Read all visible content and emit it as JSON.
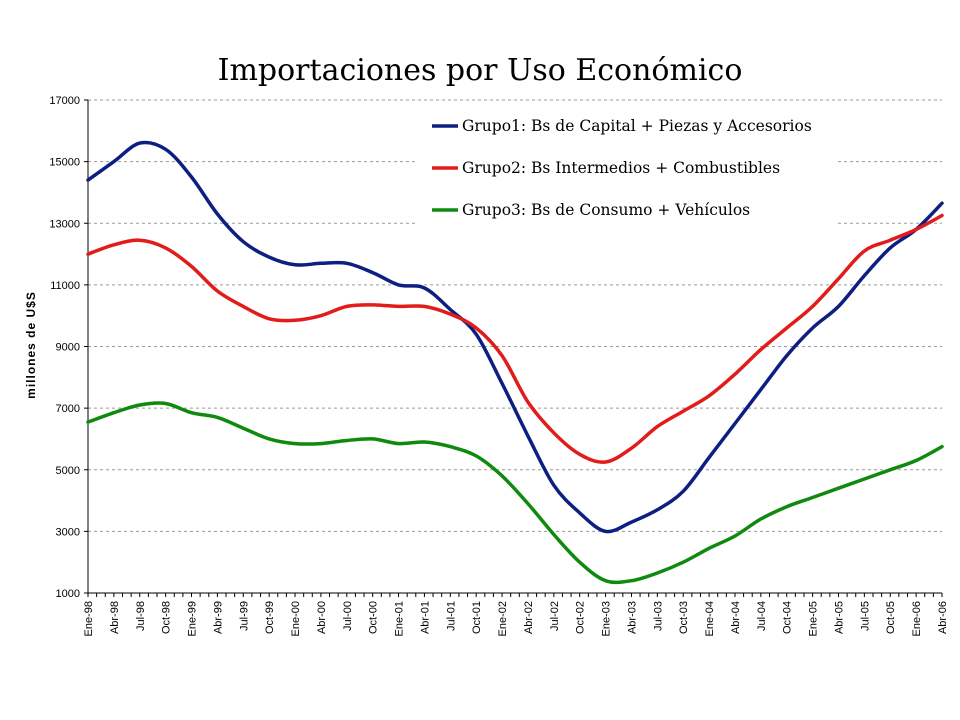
{
  "chart_data": {
    "type": "line",
    "title": "Importaciones por Uso Económico",
    "ylabel": "millones de U$S",
    "xlabel": "",
    "ylim": [
      1000,
      17000
    ],
    "yticks": [
      1000,
      3000,
      5000,
      7000,
      9000,
      11000,
      13000,
      15000,
      17000
    ],
    "grid": "horizontal-dashed",
    "legend_position": "top-right",
    "x_start": "Ene-98",
    "x_end": "Abr-06",
    "x_tick_labels": [
      "Ene-98",
      "Abr-98",
      "Jul-98",
      "Oct-98",
      "Ene-99",
      "Abr-99",
      "Jul-99",
      "Oct-99",
      "Ene-00",
      "Abr-00",
      "Jul-00",
      "Oct-00",
      "Ene-01",
      "Abr-01",
      "Jul-01",
      "Oct-01",
      "Ene-02",
      "Abr-02",
      "Jul-02",
      "Oct-02",
      "Ene-03",
      "Abr-03",
      "Jul-03",
      "Oct-03",
      "Ene-04",
      "Abr-04",
      "Jul-04",
      "Oct-04",
      "Ene-05",
      "Abr-05",
      "Jul-05",
      "Oct-05",
      "Ene-06",
      "Abr-06"
    ],
    "series": [
      {
        "name": "Grupo1: Bs de Capital + Piezas y Accesorios",
        "color": "#0d1f80",
        "anchors": {
          "Ene-98": 14400,
          "Abr-98": 15000,
          "Jul-98": 15600,
          "Oct-98": 15400,
          "Ene-99": 14500,
          "Abr-99": 13300,
          "Jul-99": 12400,
          "Oct-99": 11900,
          "Ene-00": 11650,
          "Abr-00": 11700,
          "Jul-00": 11700,
          "Oct-00": 11400,
          "Ene-01": 11000,
          "Abr-01": 10900,
          "Jul-01": 10200,
          "Oct-01": 9400,
          "Ene-02": 7800,
          "Abr-02": 6100,
          "Jul-02": 4500,
          "Oct-02": 3600,
          "Ene-03": 3000,
          "Abr-03": 3300,
          "Jul-03": 3700,
          "Oct-03": 4300,
          "Ene-04": 5400,
          "Abr-04": 6500,
          "Jul-04": 7600,
          "Oct-04": 8700,
          "Ene-05": 9600,
          "Abr-05": 10300,
          "Jul-05": 11300,
          "Oct-05": 12200,
          "Ene-06": 12800,
          "Abr-06": 13650
        }
      },
      {
        "name": "Grupo2: Bs Intermedios + Combustibles",
        "color": "#e21b1b",
        "anchors": {
          "Ene-98": 12000,
          "Abr-98": 12300,
          "Jul-98": 12450,
          "Oct-98": 12200,
          "Ene-99": 11600,
          "Abr-99": 10800,
          "Jul-99": 10300,
          "Oct-99": 9900,
          "Ene-00": 9850,
          "Abr-00": 10000,
          "Jul-00": 10300,
          "Oct-00": 10350,
          "Ene-01": 10300,
          "Abr-01": 10300,
          "Jul-01": 10050,
          "Oct-01": 9600,
          "Ene-02": 8700,
          "Abr-02": 7200,
          "Jul-02": 6200,
          "Oct-02": 5500,
          "Ene-03": 5250,
          "Abr-03": 5700,
          "Jul-03": 6400,
          "Oct-03": 6900,
          "Ene-04": 7400,
          "Abr-04": 8100,
          "Jul-04": 8900,
          "Oct-04": 9600,
          "Ene-05": 10300,
          "Abr-05": 11200,
          "Jul-05": 12100,
          "Oct-05": 12450,
          "Ene-06": 12800,
          "Abr-06": 13250
        }
      },
      {
        "name": "Grupo3: Bs de Consumo + Vehículos",
        "color": "#0f8a0f",
        "anchors": {
          "Ene-98": 6550,
          "Abr-98": 6850,
          "Jul-98": 7100,
          "Oct-98": 7150,
          "Ene-99": 6850,
          "Abr-99": 6700,
          "Jul-99": 6350,
          "Oct-99": 6000,
          "Ene-00": 5850,
          "Abr-00": 5850,
          "Jul-00": 5950,
          "Oct-00": 6000,
          "Ene-01": 5850,
          "Abr-01": 5900,
          "Jul-01": 5750,
          "Oct-01": 5450,
          "Ene-02": 4800,
          "Abr-02": 3900,
          "Jul-02": 2900,
          "Oct-02": 2000,
          "Ene-03": 1400,
          "Abr-03": 1400,
          "Jul-03": 1650,
          "Oct-03": 2000,
          "Ene-04": 2450,
          "Abr-04": 2850,
          "Jul-04": 3400,
          "Oct-04": 3800,
          "Ene-05": 4100,
          "Abr-05": 4400,
          "Jul-05": 4700,
          "Oct-05": 5000,
          "Ene-06": 5300,
          "Abr-06": 5750
        }
      }
    ]
  }
}
